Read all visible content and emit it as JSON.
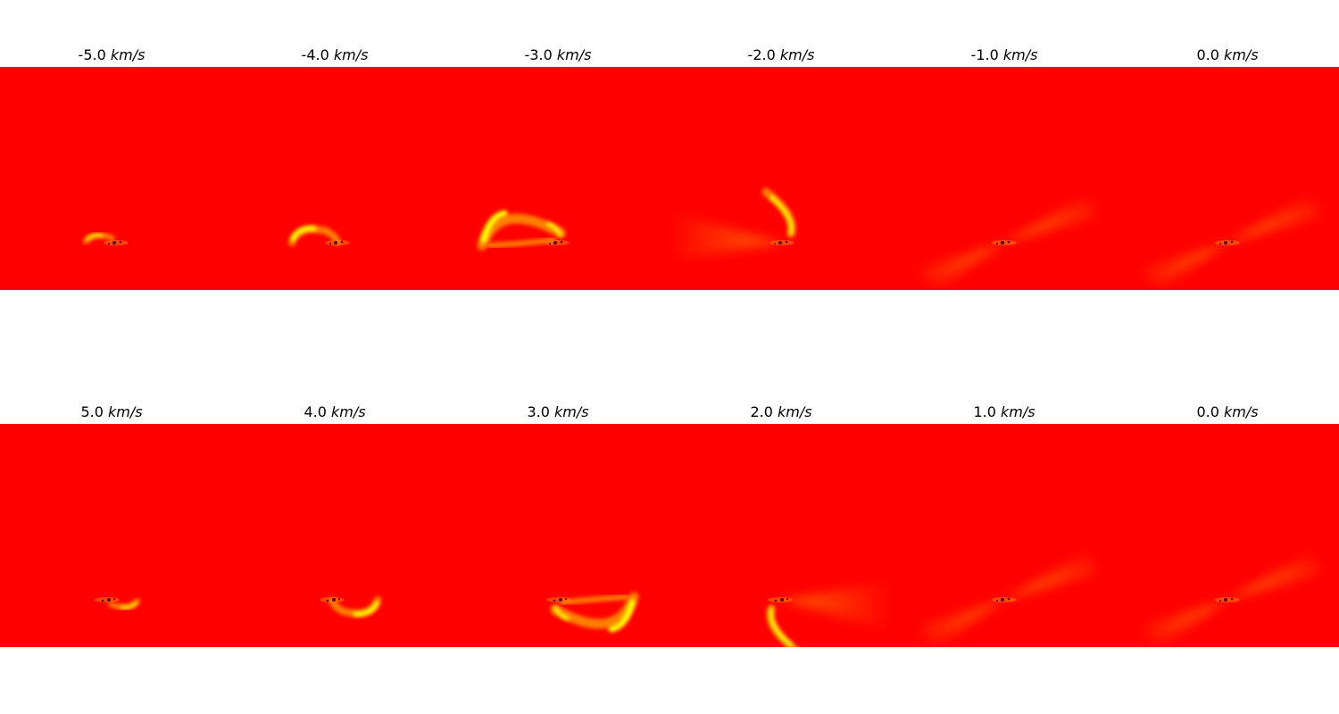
{
  "colors": {
    "background": "#ff0000",
    "low": "#ff0000",
    "mid": "#ff8000",
    "high": "#ffff00"
  },
  "unit": "km/s",
  "chart_data": [
    {
      "type": "heatmap",
      "velocity": -5.0,
      "title": "-5.0",
      "feature": "arc-top-small"
    },
    {
      "type": "heatmap",
      "velocity": -4.0,
      "title": "-4.0",
      "feature": "arc-top-medium"
    },
    {
      "type": "heatmap",
      "velocity": -3.0,
      "title": "-3.0",
      "feature": "arc-top-large"
    },
    {
      "type": "heatmap",
      "velocity": -2.0,
      "title": "-2.0",
      "feature": "arc-upper-right-fan-left"
    },
    {
      "type": "heatmap",
      "velocity": -1.0,
      "title": "-1.0",
      "feature": "bipolar-fan"
    },
    {
      "type": "heatmap",
      "velocity": 0.0,
      "title": "0.0",
      "feature": "bipolar-fan"
    },
    {
      "type": "heatmap",
      "velocity": 5.0,
      "title": "5.0",
      "feature": "arc-bottom-small"
    },
    {
      "type": "heatmap",
      "velocity": 4.0,
      "title": "4.0",
      "feature": "arc-bottom-medium"
    },
    {
      "type": "heatmap",
      "velocity": 3.0,
      "title": "3.0",
      "feature": "arc-bottom-large"
    },
    {
      "type": "heatmap",
      "velocity": 2.0,
      "title": "2.0",
      "feature": "arc-lower-left-fan-right"
    },
    {
      "type": "heatmap",
      "velocity": 1.0,
      "title": "1.0",
      "feature": "bipolar-fan"
    },
    {
      "type": "heatmap",
      "velocity": 0.0,
      "title": "0.0",
      "feature": "bipolar-fan"
    }
  ]
}
